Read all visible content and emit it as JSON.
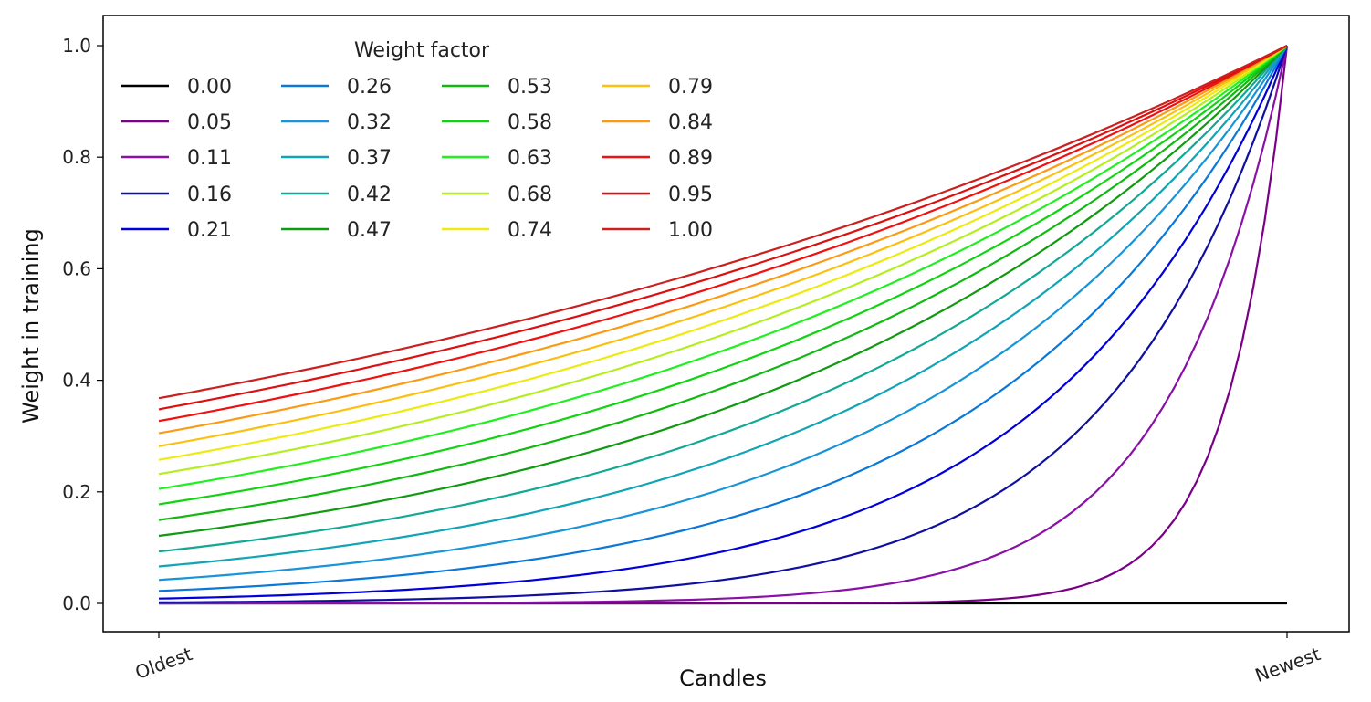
{
  "chart_data": {
    "type": "line",
    "title": "",
    "xlabel": "Candles",
    "ylabel": "Weight in training",
    "xticks": [
      "Oldest",
      "Newest"
    ],
    "x": [
      0,
      0.2,
      0.4,
      0.6,
      0.8,
      1.0
    ],
    "yticks": [
      "0.0",
      "0.2",
      "0.4",
      "0.6",
      "0.8",
      "1.0"
    ],
    "ylim": [
      -0.05,
      1.05
    ],
    "grid": false,
    "legend": {
      "title": "Weight factor",
      "placement": "top-left",
      "columns": 4
    },
    "series": [
      {
        "name": "0.00",
        "color": "#000000",
        "values": [
          0,
          0,
          0,
          0,
          0,
          0
        ]
      },
      {
        "name": "0.05",
        "color": "#7b0088",
        "values": [
          5.6e-09,
          2.5e-07,
          1.1e-05,
          0.0005,
          0.0224,
          1
        ]
      },
      {
        "name": "0.11",
        "color": "#8a10a8",
        "values": [
          7e-05,
          0.0005,
          0.0033,
          0.0224,
          0.1496,
          1
        ]
      },
      {
        "name": "0.16",
        "color": "#1010a0",
        "values": [
          0.00178,
          0.0063,
          0.0224,
          0.0794,
          0.2818,
          1
        ]
      },
      {
        "name": "0.21",
        "color": "#0000dd",
        "values": [
          0.00865,
          0.0224,
          0.0578,
          0.1496,
          0.3867,
          1
        ]
      },
      {
        "name": "0.26",
        "color": "#0a78d8",
        "values": [
          0.0224,
          0.0478,
          0.1023,
          0.2187,
          0.4677,
          1
        ]
      },
      {
        "name": "0.32",
        "color": "#1894d8",
        "values": [
          0.0421,
          0.0794,
          0.1496,
          0.2818,
          0.5308,
          1
        ]
      },
      {
        "name": "0.37",
        "color": "#10a4b4",
        "values": [
          0.0663,
          0.114,
          0.1962,
          0.3376,
          0.581,
          1
        ]
      },
      {
        "name": "0.42",
        "color": "#12a896",
        "values": [
          0.093,
          0.1496,
          0.2405,
          0.3867,
          0.6219,
          1
        ]
      },
      {
        "name": "0.47",
        "color": "#109a10",
        "values": [
          0.1211,
          0.1847,
          0.2818,
          0.4298,
          0.6556,
          1
        ]
      },
      {
        "name": "0.53",
        "color": "#10b810",
        "values": [
          0.1496,
          0.2187,
          0.3198,
          0.4677,
          0.6839,
          1
        ]
      },
      {
        "name": "0.58",
        "color": "#10d410",
        "values": [
          0.1778,
          0.2511,
          0.3548,
          0.5011,
          0.7079,
          1
        ]
      },
      {
        "name": "0.63",
        "color": "#20f020",
        "values": [
          0.2053,
          0.2818,
          0.3867,
          0.5308,
          0.7286,
          1
        ]
      },
      {
        "name": "0.68",
        "color": "#b4ee20",
        "values": [
          0.2319,
          0.3106,
          0.4161,
          0.5573,
          0.7465,
          1
        ]
      },
      {
        "name": "0.74",
        "color": "#eeea10",
        "values": [
          0.2574,
          0.3376,
          0.443,
          0.581,
          0.7624,
          1
        ]
      },
      {
        "name": "0.79",
        "color": "#fcc010",
        "values": [
          0.2818,
          0.363,
          0.4677,
          0.6025,
          0.7762,
          1
        ]
      },
      {
        "name": "0.84",
        "color": "#fc9a14",
        "values": [
          0.305,
          0.3867,
          0.4904,
          0.6219,
          0.7886,
          1
        ]
      },
      {
        "name": "0.89",
        "color": "#f01010",
        "values": [
          0.327,
          0.409,
          0.5114,
          0.6395,
          0.7997,
          1
        ]
      },
      {
        "name": "0.95",
        "color": "#dc1010",
        "values": [
          0.348,
          0.4298,
          0.5308,
          0.6556,
          0.8097,
          1
        ]
      },
      {
        "name": "1.00",
        "color": "#cc2020",
        "values": [
          0.3679,
          0.4493,
          0.5488,
          0.6703,
          0.8187,
          1
        ]
      }
    ]
  }
}
